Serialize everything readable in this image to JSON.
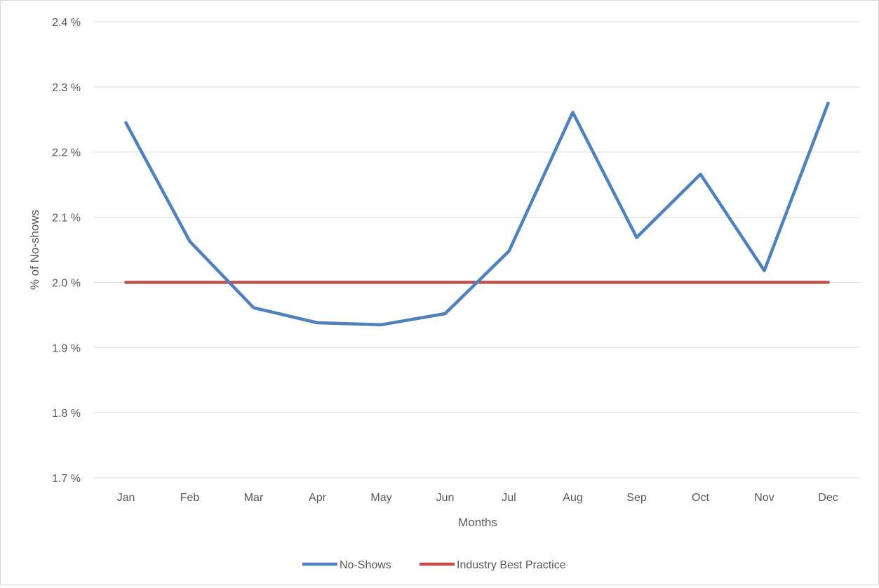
{
  "chart_data": {
    "type": "line",
    "title": "",
    "xlabel": "Months",
    "ylabel": "% of No-shows",
    "categories": [
      "Jan",
      "Feb",
      "Mar",
      "Apr",
      "May",
      "Jun",
      "Jul",
      "Aug",
      "Sep",
      "Oct",
      "Nov",
      "Dec"
    ],
    "ylim": [
      1.7,
      2.4
    ],
    "yticks": [
      1.7,
      1.8,
      1.9,
      2.0,
      2.1,
      2.2,
      2.3,
      2.4
    ],
    "ytick_labels": [
      "1.7 %",
      "1.8 %",
      "1.9 %",
      "2.0 %",
      "2.1 %",
      "2.2 %",
      "2.3 %",
      "2.4 %"
    ],
    "grid": "horizontal",
    "legend_position": "bottom",
    "series": [
      {
        "name": "No-Shows",
        "color": "#4f81bd",
        "values": [
          2.245,
          2.063,
          1.961,
          1.938,
          1.935,
          1.952,
          2.048,
          2.261,
          2.069,
          2.166,
          2.018,
          2.275
        ]
      },
      {
        "name": "Industry Best Practice",
        "color": "#c0504d",
        "values": [
          2.0,
          2.0,
          2.0,
          2.0,
          2.0,
          2.0,
          2.0,
          2.0,
          2.0,
          2.0,
          2.0,
          2.0
        ]
      }
    ]
  }
}
